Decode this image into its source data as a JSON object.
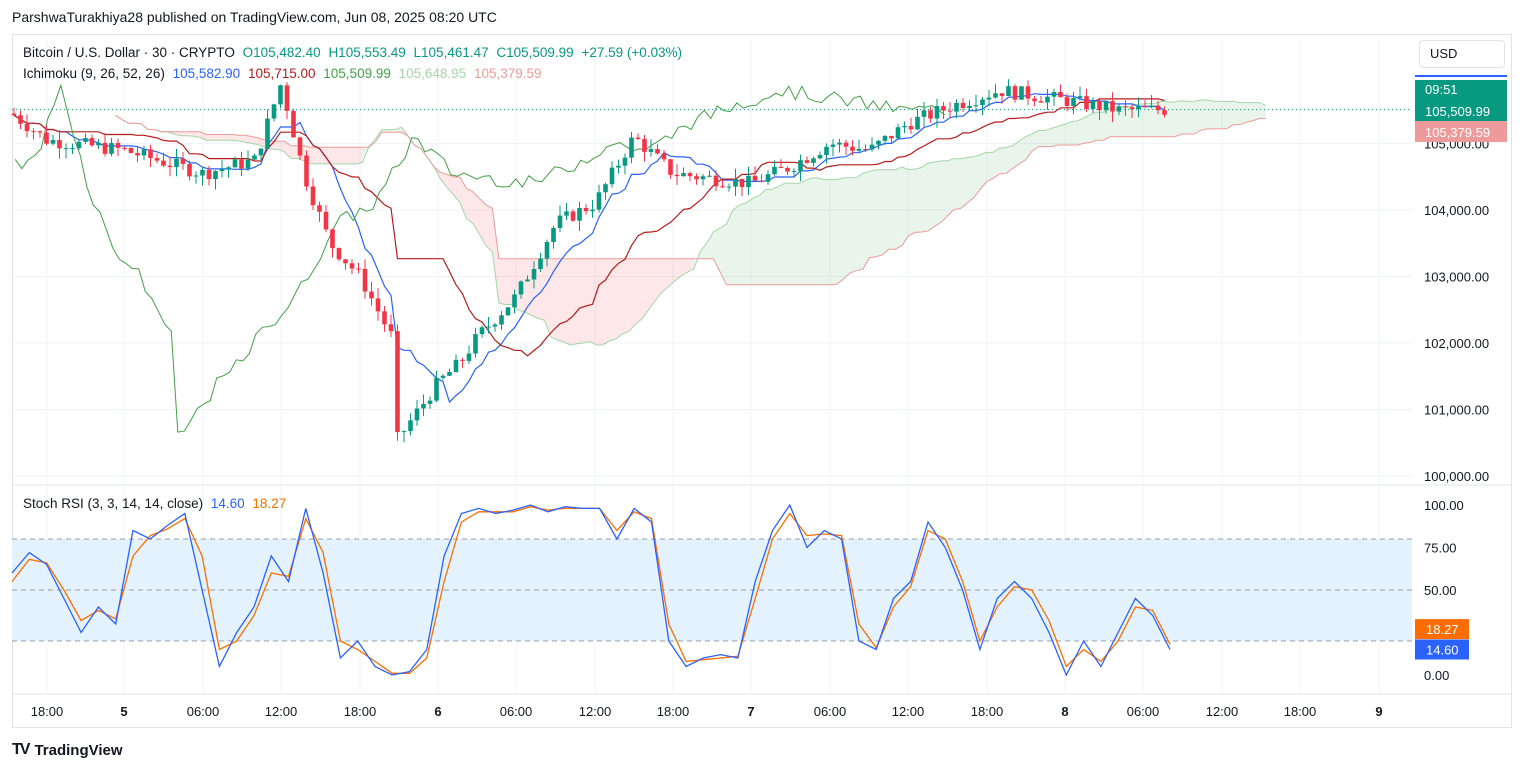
{
  "header": {
    "published": "ParshwaTurakhiya28 published on TradingView.com, Jun 08, 2025 08:20 UTC"
  },
  "legend": {
    "symbol": "Bitcoin / U.S. Dollar · 30 · CRYPTO",
    "ohlc": {
      "o": "O105,482.40",
      "h": "H105,553.49",
      "l": "L105,461.47",
      "c": "C105,509.99",
      "chg": "+27.59 (+0.03%)"
    },
    "ichimoku": {
      "label": "Ichimoku (9, 26, 52, 26)",
      "values": [
        "105,582.90",
        "105,715.00",
        "105,509.99",
        "105,648.95",
        "105,379.59"
      ],
      "colors": [
        "#2962ff",
        "#b71c1c",
        "#43a047",
        "#a5d6a7",
        "#ef9a9a"
      ]
    },
    "stoch": {
      "label": "Stoch RSI (3, 3, 14, 14, close)",
      "k": "14.60",
      "d": "18.27"
    }
  },
  "currency_button": "USD",
  "price_scale": {
    "labels": [
      "105,000.00",
      "104,000.00",
      "103,000.00",
      "102,000.00",
      "101,000.00",
      "100,000.00"
    ],
    "countdown": "09:51",
    "last_price": "105,509.99",
    "lagging_price": "105,379.59"
  },
  "stoch_scale": {
    "labels": [
      "100.00",
      "75.00",
      "50.00",
      "0.00"
    ],
    "d_value": "18.27",
    "k_value": "14.60"
  },
  "time_axis": [
    "18:00",
    "5",
    "06:00",
    "12:00",
    "18:00",
    "6",
    "06:00",
    "12:00",
    "18:00",
    "7",
    "06:00",
    "12:00",
    "18:00",
    "8",
    "06:00",
    "12:00",
    "18:00",
    "9"
  ],
  "branding": "TradingView",
  "colors": {
    "up": "#089981",
    "down": "#f23645",
    "tenkan": "#2962ff",
    "kijun": "#b71c1c",
    "chikou": "#43a047",
    "spanA": "#a5d6a7",
    "spanB": "#ef9a9a",
    "stochK": "#2962ff",
    "stochD": "#ff6d00",
    "band": "#e3f2fd"
  },
  "chart_data": [
    {
      "type": "candlestick",
      "title": "Bitcoin / U.S. Dollar · 30 · CRYPTO",
      "ylim": [
        100000,
        106000
      ],
      "x_ticks": [
        "18:00",
        "5",
        "06:00",
        "12:00",
        "18:00",
        "6",
        "06:00",
        "12:00",
        "18:00",
        "7",
        "06:00",
        "12:00",
        "18:00",
        "8",
        "06:00"
      ],
      "close_path": [
        [
          "Jun 4 14:00",
          105450
        ],
        [
          "Jun 4 18:00",
          105050
        ],
        [
          "Jun 5 00:00",
          104900
        ],
        [
          "Jun 5 06:00",
          104550
        ],
        [
          "Jun 5 10:00",
          104750
        ],
        [
          "Jun 5 12:00",
          105900
        ],
        [
          "Jun 5 14:00",
          104500
        ],
        [
          "Jun 5 16:00",
          103500
        ],
        [
          "Jun 5 18:00",
          103000
        ],
        [
          "Jun 5 20:00",
          102000
        ],
        [
          "Jun 5 22:00",
          100500
        ],
        [
          "Jun 6 00:00",
          101400
        ],
        [
          "Jun 6 02:00",
          101700
        ],
        [
          "Jun 6 04:00",
          102100
        ],
        [
          "Jun 6 06:00",
          102700
        ],
        [
          "Jun 6 09:00",
          103800
        ],
        [
          "Jun 6 12:00",
          104100
        ],
        [
          "Jun 6 15:00",
          105100
        ],
        [
          "Jun 6 18:00",
          104550
        ],
        [
          "Jun 7 00:00",
          104400
        ],
        [
          "Jun 7 03:00",
          104650
        ],
        [
          "Jun 7 06:00",
          105000
        ],
        [
          "Jun 7 09:00",
          104900
        ],
        [
          "Jun 7 12:00",
          105300
        ],
        [
          "Jun 7 16:00",
          105600
        ],
        [
          "Jun 7 20:00",
          105800
        ],
        [
          "Jun 8 00:00",
          105650
        ],
        [
          "Jun 8 04:00",
          105500
        ],
        [
          "Jun 8 08:00",
          105509.99
        ]
      ],
      "ichimoku": {
        "tenkan_last": 105582.9,
        "kijun_last": 105715.0,
        "chikou_last": 105509.99,
        "span_a_last": 105648.95,
        "span_b_last": 105379.59
      }
    },
    {
      "type": "line",
      "title": "Stoch RSI (3, 3, 14, 14, close)",
      "ylim": [
        0,
        100
      ],
      "series": [
        {
          "name": "K",
          "values": [
            60,
            72,
            65,
            45,
            25,
            40,
            30,
            85,
            80,
            88,
            95,
            50,
            5,
            25,
            40,
            70,
            55,
            98,
            60,
            10,
            20,
            5,
            0,
            2,
            15,
            70,
            95,
            98,
            95,
            97,
            100,
            96,
            99,
            98,
            98,
            80,
            98,
            90,
            20,
            5,
            10,
            12,
            10,
            55,
            85,
            100,
            75,
            85,
            80,
            20,
            15,
            45,
            55,
            90,
            75,
            50,
            15,
            45,
            55,
            45,
            25,
            0,
            20,
            5,
            25,
            45,
            35,
            15
          ]
        },
        {
          "name": "D",
          "values": [
            55,
            68,
            66,
            50,
            32,
            38,
            33,
            70,
            82,
            86,
            92,
            70,
            15,
            20,
            35,
            60,
            58,
            92,
            72,
            20,
            15,
            8,
            1,
            1,
            10,
            55,
            90,
            96,
            96,
            96,
            99,
            97,
            98,
            98,
            98,
            85,
            96,
            92,
            30,
            8,
            9,
            10,
            11,
            45,
            80,
            95,
            82,
            83,
            82,
            30,
            16,
            40,
            52,
            85,
            80,
            55,
            20,
            40,
            52,
            50,
            32,
            5,
            15,
            8,
            20,
            40,
            38,
            18
          ]
        }
      ],
      "bands": [
        20,
        50,
        80
      ]
    }
  ]
}
